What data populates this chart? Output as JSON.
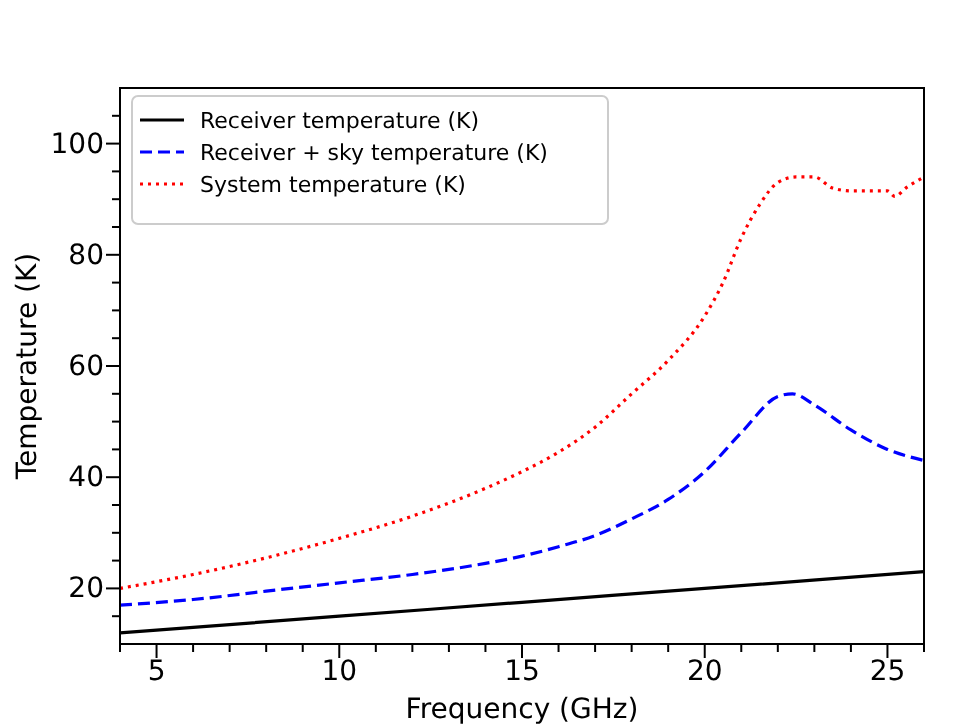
{
  "chart_data": {
    "type": "line",
    "xlabel": "Frequency (GHz)",
    "ylabel": "Temperature (K)",
    "xlim": [
      4,
      26
    ],
    "ylim": [
      10,
      110
    ],
    "xticks": [
      {
        "value": 4,
        "label": null
      },
      5,
      {
        "value": 6,
        "label": null
      },
      {
        "value": 7,
        "label": null
      },
      {
        "value": 8,
        "label": null
      },
      {
        "value": 9,
        "label": null
      },
      10,
      {
        "value": 11,
        "label": null
      },
      {
        "value": 12,
        "label": null
      },
      {
        "value": 13,
        "label": null
      },
      {
        "value": 14,
        "label": null
      },
      15,
      {
        "value": 16,
        "label": null
      },
      {
        "value": 17,
        "label": null
      },
      {
        "value": 18,
        "label": null
      },
      {
        "value": 19,
        "label": null
      },
      20,
      {
        "value": 21,
        "label": null
      },
      {
        "value": 22,
        "label": null
      },
      {
        "value": 23,
        "label": null
      },
      {
        "value": 24,
        "label": null
      },
      25,
      {
        "value": 26,
        "label": null
      }
    ],
    "yticks": [
      {
        "value": 15,
        "label": null
      },
      20,
      {
        "value": 25,
        "label": null
      },
      {
        "value": 30,
        "label": null
      },
      {
        "value": 35,
        "label": null
      },
      40,
      {
        "value": 45,
        "label": null
      },
      {
        "value": 50,
        "label": null
      },
      {
        "value": 55,
        "label": null
      },
      60,
      {
        "value": 65,
        "label": null
      },
      {
        "value": 70,
        "label": null
      },
      {
        "value": 75,
        "label": null
      },
      80,
      {
        "value": 85,
        "label": null
      },
      {
        "value": 90,
        "label": null
      },
      {
        "value": 95,
        "label": null
      },
      100,
      {
        "value": 105,
        "label": null
      }
    ],
    "legend": "top left",
    "grid": false,
    "series": [
      {
        "name": "Receiver temperature (K)",
        "color": "#000000",
        "line_style": "solid",
        "x": [
          4,
          10,
          15,
          20,
          26
        ],
        "values": [
          12,
          15,
          17.5,
          20,
          23
        ]
      },
      {
        "name": "Receiver + sky temperature (K)",
        "color": "#0000ff",
        "line_style": "dashed",
        "x": [
          4,
          6,
          8,
          10,
          12,
          14,
          15,
          16,
          17,
          18,
          19,
          20,
          21,
          22,
          22.4,
          23,
          24,
          25,
          26
        ],
        "values": [
          17,
          18,
          19.5,
          21,
          22.5,
          24.5,
          25.8,
          27.5,
          29.5,
          32.5,
          36,
          41,
          48,
          54.5,
          55,
          53,
          48.5,
          45,
          43
        ]
      },
      {
        "name": "System temperature (K)",
        "color": "#ff0000",
        "line_style": "dotted",
        "x": [
          4,
          6,
          8,
          10,
          12,
          14,
          15,
          16,
          17,
          18,
          19,
          20,
          20.5,
          21,
          21.5,
          22,
          22.5,
          23,
          23.5,
          24,
          24.5,
          25,
          25.2,
          25.5,
          26
        ],
        "values": [
          20,
          22.5,
          25.5,
          29,
          33,
          38,
          41,
          44.5,
          49,
          55,
          61,
          69,
          75,
          83,
          89,
          93,
          94,
          94,
          92,
          91.5,
          91.5,
          91.5,
          90.5,
          92,
          94
        ]
      }
    ]
  }
}
